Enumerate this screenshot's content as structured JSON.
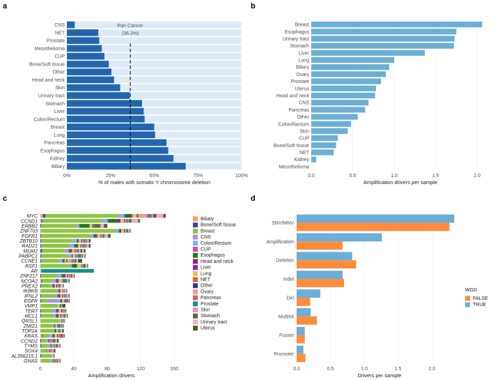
{
  "panel_labels": [
    "a",
    "b",
    "c",
    "d"
  ],
  "chart_data": [
    {
      "panel": "a",
      "type": "bar",
      "orientation": "horizontal",
      "categories": [
        "CNS",
        "NET",
        "Prostate",
        "Mesothelioma",
        "CUP",
        "Bone/Soft tissue",
        "Other",
        "Head and neck",
        "Skin",
        "Urinary tract",
        "Stomach",
        "Liver",
        "Colon/Rectum",
        "Breast",
        "Lung",
        "Pancreas",
        "Esophagus",
        "Kidney",
        "Biliary"
      ],
      "values": [
        4.5,
        18,
        18.5,
        20,
        21.5,
        24,
        25.5,
        27,
        30.5,
        36,
        43,
        44,
        44.5,
        50,
        50.5,
        57,
        58,
        61,
        68
      ],
      "background_value": 100,
      "reference_line": {
        "value": 36.3,
        "label": "Pan Cancer",
        "value_label": "(36.3%)"
      },
      "xlabel": "% of males with somatic Y chromosome deletion",
      "xlim": [
        0,
        100
      ],
      "xticks": [
        "0%",
        "25%",
        "50%",
        "75%",
        "100%"
      ],
      "colors": {
        "bar": "#2267ad",
        "background": "#deebf7"
      }
    },
    {
      "panel": "b",
      "type": "bar",
      "orientation": "horizontal",
      "categories": [
        "Breast",
        "Esophagus",
        "Urinary tract",
        "Stomach",
        "Liver",
        "Lung",
        "Biliary",
        "Ovary",
        "Prostate",
        "Uterus",
        "Head and neck",
        "CNS",
        "Pancreas",
        "Other",
        "Colon/Rectum",
        "Skin",
        "CUP",
        "Bone/Soft tissue",
        "NET",
        "Kidney",
        "Mesothelioma"
      ],
      "values": [
        2.06,
        1.75,
        1.73,
        1.72,
        1.37,
        1.0,
        0.94,
        0.9,
        0.84,
        0.78,
        0.77,
        0.69,
        0.65,
        0.56,
        0.48,
        0.44,
        0.32,
        0.3,
        0.27,
        0.06,
        0.0
      ],
      "xlabel": "Amplification drivers per sample",
      "xlim": [
        0,
        2.15
      ],
      "xticks": [
        "0.0",
        "0.5",
        "1.0",
        "1.5",
        "2.0"
      ],
      "colors": {
        "bar": "#6baed6"
      }
    },
    {
      "panel": "c",
      "type": "bar",
      "orientation": "horizontal",
      "stacked": true,
      "categories": [
        "MYC",
        "CCND1",
        "ERBB2",
        "ZNF703",
        "FGFR1",
        "ZBTB10",
        "RAD21",
        "MDM2",
        "PABPC1",
        "CCNE1",
        "RSF1",
        "AR",
        "ZNF217",
        "NCOA2",
        "PREX2",
        "IKBKB",
        "IFNL2",
        "EGFR",
        "VMP1",
        "TERT",
        "MCL1",
        "QRSL1",
        "ZMIZ1",
        "TOP2A",
        "KRAS",
        "CCND2",
        "TYMS",
        "SOX4",
        "AL356215.1",
        "GNAS"
      ],
      "series": [
        {
          "name": "Biliary",
          "values": [
            3,
            1,
            0,
            0,
            0,
            0,
            0,
            0,
            0,
            0,
            0,
            0,
            0,
            1,
            0,
            0,
            0,
            0,
            0,
            0,
            0,
            0,
            0,
            0,
            2,
            0,
            0,
            0,
            0,
            1
          ]
        },
        {
          "name": "Bone/Soft tissue",
          "values": [
            3,
            1,
            1,
            0,
            1,
            1,
            1,
            2,
            1,
            1,
            0,
            0,
            1,
            1,
            1,
            0,
            1,
            1,
            0,
            1,
            1,
            0,
            0,
            0,
            1,
            1,
            1,
            0,
            1,
            0
          ]
        },
        {
          "name": "Breast",
          "values": [
            88,
            72,
            42,
            90,
            58,
            38,
            34,
            27,
            32,
            21,
            36,
            0,
            20,
            12,
            11,
            20,
            16,
            7,
            20,
            12,
            15,
            23,
            14,
            16,
            7,
            6,
            8,
            6,
            12,
            11
          ]
        },
        {
          "name": "CNS",
          "values": [
            1,
            1,
            1,
            0,
            1,
            0,
            1,
            3,
            0,
            1,
            0,
            0,
            1,
            1,
            1,
            0,
            1,
            12,
            0,
            3,
            0,
            0,
            0,
            0,
            1,
            0,
            0,
            0,
            0,
            0
          ]
        },
        {
          "name": "Colon/Rectum",
          "values": [
            5,
            5,
            2,
            4,
            3,
            4,
            4,
            1,
            4,
            3,
            1,
            1,
            3,
            3,
            1,
            1,
            2,
            4,
            1,
            2,
            2,
            1,
            2,
            1,
            3,
            2,
            3,
            1,
            1,
            3
          ]
        },
        {
          "name": "CUP",
          "values": [
            1,
            1,
            1,
            0,
            1,
            1,
            1,
            2,
            1,
            1,
            1,
            0,
            1,
            1,
            1,
            1,
            1,
            0,
            0,
            1,
            1,
            0,
            1,
            0,
            1,
            1,
            1,
            0,
            0,
            0
          ]
        },
        {
          "name": "Esophagus",
          "values": [
            7,
            10,
            12,
            2,
            2,
            2,
            3,
            2,
            1,
            2,
            6,
            0,
            2,
            1,
            1,
            1,
            1,
            1,
            0,
            1,
            2,
            0,
            1,
            2,
            2,
            1,
            1,
            1,
            0,
            1
          ]
        },
        {
          "name": "Head and neck",
          "values": [
            1,
            4,
            0,
            1,
            2,
            0,
            1,
            1,
            0,
            0,
            0,
            0,
            1,
            1,
            1,
            1,
            1,
            1,
            0,
            1,
            0,
            0,
            0,
            0,
            0,
            0,
            0,
            0,
            0,
            0
          ]
        },
        {
          "name": "Liver",
          "values": [
            1,
            1,
            0,
            0,
            0,
            0,
            0,
            0,
            0,
            0,
            0,
            0,
            1,
            1,
            0,
            0,
            1,
            0,
            0,
            1,
            1,
            0,
            0,
            0,
            0,
            0,
            0,
            0,
            0,
            0
          ]
        },
        {
          "name": "Lung",
          "values": [
            5,
            4,
            3,
            3,
            4,
            3,
            3,
            3,
            3,
            2,
            4,
            0,
            2,
            3,
            2,
            2,
            2,
            3,
            2,
            3,
            2,
            1,
            2,
            2,
            3,
            1,
            2,
            1,
            1,
            1
          ]
        },
        {
          "name": "NET",
          "values": [
            1,
            0,
            0,
            0,
            0,
            0,
            0,
            0,
            0,
            0,
            0,
            0,
            0,
            0,
            0,
            0,
            0,
            0,
            0,
            0,
            0,
            0,
            0,
            0,
            0,
            0,
            0,
            0,
            0,
            0
          ]
        },
        {
          "name": "Other",
          "values": [
            1,
            1,
            1,
            1,
            1,
            1,
            1,
            1,
            1,
            1,
            0,
            0,
            1,
            0,
            1,
            0,
            1,
            1,
            0,
            1,
            1,
            0,
            0,
            0,
            1,
            1,
            1,
            0,
            0,
            1
          ]
        },
        {
          "name": "Ovary",
          "values": [
            10,
            1,
            0,
            1,
            1,
            1,
            1,
            1,
            1,
            5,
            1,
            0,
            1,
            1,
            1,
            0,
            1,
            0,
            0,
            0,
            2,
            0,
            0,
            0,
            1,
            1,
            1,
            1,
            0,
            1
          ]
        },
        {
          "name": "Pancreas",
          "values": [
            3,
            2,
            1,
            1,
            1,
            1,
            1,
            2,
            1,
            2,
            0,
            0,
            1,
            1,
            1,
            1,
            1,
            1,
            0,
            1,
            1,
            1,
            1,
            1,
            3,
            1,
            1,
            1,
            0,
            1
          ]
        },
        {
          "name": "Prostate",
          "values": [
            3,
            1,
            0,
            1,
            1,
            2,
            2,
            1,
            4,
            1,
            1,
            63,
            0,
            4,
            1,
            0,
            1,
            1,
            2,
            0,
            1,
            1,
            3,
            1,
            0,
            2,
            1,
            1,
            0,
            0
          ]
        },
        {
          "name": "Skin",
          "values": [
            2,
            1,
            0,
            0,
            0,
            1,
            1,
            2,
            1,
            1,
            1,
            0,
            1,
            0,
            0,
            1,
            1,
            0,
            0,
            1,
            0,
            0,
            1,
            0,
            0,
            0,
            0,
            1,
            0,
            0
          ]
        },
        {
          "name": "Stomach",
          "values": [
            4,
            3,
            8,
            1,
            1,
            1,
            1,
            2,
            1,
            2,
            3,
            0,
            2,
            1,
            1,
            1,
            1,
            1,
            0,
            1,
            1,
            0,
            1,
            1,
            2,
            1,
            1,
            1,
            0,
            1
          ]
        },
        {
          "name": "Urinary tract",
          "values": [
            8,
            8,
            4,
            2,
            4,
            2,
            3,
            2,
            2,
            2,
            2,
            0,
            2,
            2,
            3,
            2,
            2,
            1,
            1,
            1,
            2,
            1,
            1,
            2,
            1,
            2,
            2,
            2,
            1,
            2
          ]
        },
        {
          "name": "Uterus",
          "values": [
            3,
            2,
            4,
            1,
            3,
            2,
            2,
            2,
            1,
            5,
            1,
            0,
            1,
            1,
            1,
            1,
            1,
            1,
            4,
            1,
            1,
            1,
            1,
            2,
            1,
            2,
            1,
            2,
            1,
            1
          ]
        }
      ],
      "xlabel": "Amplification drivers",
      "xlim": [
        0,
        170
      ],
      "xticks": [
        "0",
        "40",
        "80",
        "120",
        "160"
      ],
      "legend_placement": "right",
      "colors": {
        "Biliary": "#f4a34c",
        "Bone/Soft tissue": "#3f3fb8",
        "Breast": "#8cc63f",
        "CNS": "#b38fe0",
        "Colon/Rectum": "#7ab8e0",
        "CUP": "#e63fc9",
        "Esophagus": "#1a7a1a",
        "Head and neck": "#a2216b",
        "Liver": "#8a1fd1",
        "Lung": "#e8c25a",
        "NET": "#d9661a",
        "Other": "#2a3d8f",
        "Ovary": "#e9a090",
        "Pancreas": "#e05a6e",
        "Prostate": "#17918b",
        "Skin": "#f08fbf",
        "Stomach": "#556b2f",
        "Urinary tract": "#f0a8d0",
        "Uterus": "#4a5d23"
      }
    },
    {
      "panel": "d",
      "type": "bar",
      "orientation": "horizontal",
      "grouped": true,
      "categories": [
        "SNV/MNV",
        "Amplification",
        "Deletion",
        "Indel",
        "Del",
        "Multihit",
        "Fusion",
        "Promoter"
      ],
      "series": [
        {
          "name": "TRUE",
          "values": [
            2.33,
            1.26,
            0.82,
            0.68,
            0.35,
            0.21,
            0.12,
            0.1
          ]
        },
        {
          "name": "FALSE",
          "values": [
            2.26,
            0.68,
            0.88,
            0.7,
            0.2,
            0.3,
            0.12,
            0.13
          ]
        }
      ],
      "xlabel": "Drivers per sample",
      "xlim": [
        0,
        2.45
      ],
      "xticks": [
        "0.0",
        "0.5",
        "1.0",
        "1.5",
        "2.0"
      ],
      "legend": {
        "title": "WGD",
        "entries": [
          "FALSE",
          "TRUE"
        ],
        "placement": "right"
      },
      "colors": {
        "TRUE": "#6baed6",
        "FALSE": "#fd8d3c"
      }
    }
  ]
}
